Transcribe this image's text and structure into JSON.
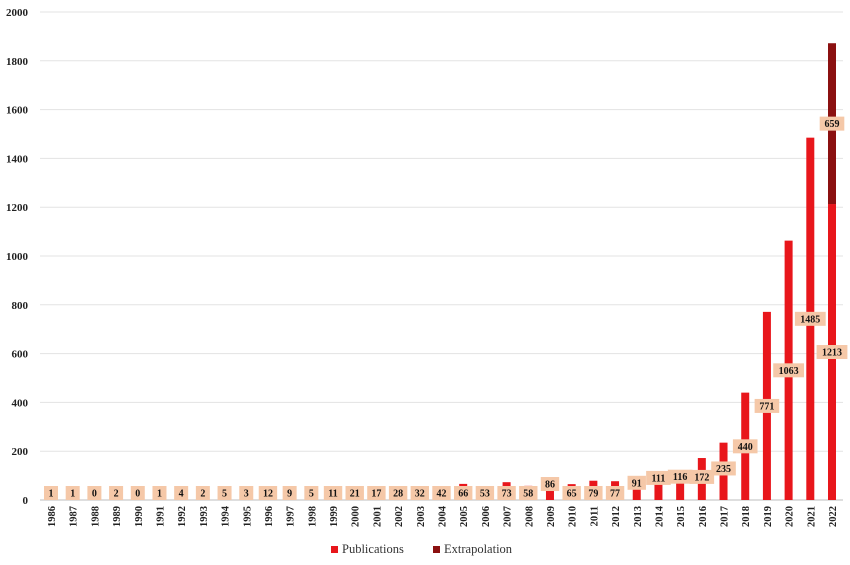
{
  "chart_data": {
    "type": "bar",
    "stacked": true,
    "categories": [
      "1986",
      "1987",
      "1988",
      "1989",
      "1990",
      "1991",
      "1992",
      "1993",
      "1994",
      "1995",
      "1996",
      "1997",
      "1998",
      "1999",
      "2000",
      "2001",
      "2002",
      "2003",
      "2004",
      "2005",
      "2006",
      "2007",
      "2008",
      "2009",
      "2010",
      "2011",
      "2012",
      "2013",
      "2014",
      "2015",
      "2016",
      "2017",
      "2018",
      "2019",
      "2020",
      "2021",
      "2022"
    ],
    "series": [
      {
        "name": "Publications",
        "color": "#e8161b",
        "values": [
          1,
          1,
          0,
          2,
          0,
          1,
          4,
          2,
          5,
          3,
          12,
          9,
          5,
          11,
          21,
          17,
          28,
          32,
          42,
          66,
          53,
          73,
          58,
          86,
          65,
          79,
          77,
          91,
          111,
          116,
          172,
          235,
          440,
          771,
          1063,
          1485,
          1213
        ],
        "labels": [
          "1",
          "1",
          "0",
          "2",
          "0",
          "1",
          "4",
          "2",
          "5",
          "3",
          "12",
          "9",
          "5",
          "11",
          "21",
          "17",
          "28",
          "32",
          "42",
          "66",
          "53",
          "73",
          "58",
          "86",
          "65",
          "79",
          "77",
          "91",
          "111",
          "116",
          "172",
          "235",
          "440",
          "771",
          "1063",
          "1485",
          "1213"
        ]
      },
      {
        "name": "Extrapolation",
        "color": "#8b1010",
        "values": [
          0,
          0,
          0,
          0,
          0,
          0,
          0,
          0,
          0,
          0,
          0,
          0,
          0,
          0,
          0,
          0,
          0,
          0,
          0,
          0,
          0,
          0,
          0,
          0,
          0,
          0,
          0,
          0,
          0,
          0,
          0,
          0,
          0,
          0,
          0,
          0,
          659
        ],
        "labels": [
          "",
          "",
          "",
          "",
          "",
          "",
          "",
          "",
          "",
          "",
          "",
          "",
          "",
          "",
          "",
          "",
          "",
          "",
          "",
          "",
          "",
          "",
          "",
          "",
          "",
          "",
          "",
          "",
          "",
          "",
          "",
          "",
          "",
          "",
          "",
          "",
          "659"
        ]
      }
    ],
    "yticks": [
      "0",
      "200",
      "400",
      "600",
      "800",
      "1000",
      "1200",
      "1400",
      "1600",
      "1800",
      "2000"
    ],
    "ylim": [
      0,
      2000
    ],
    "grid": true,
    "legend_position": "bottom",
    "label_box_color": "#f5c8a8"
  }
}
